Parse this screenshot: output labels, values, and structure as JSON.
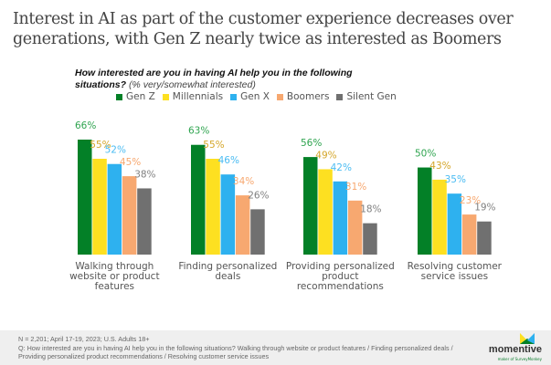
{
  "title": "Interest in AI as part of the customer experience decreases over generations, with Gen Z nearly twice as interested as Boomers",
  "subtitle": {
    "question": "How interested are you in having AI help you in the following situations?",
    "note": "(% very/somewhat interested)"
  },
  "chart_data": {
    "type": "bar",
    "categories": [
      "Walking through website or product features",
      "Finding personalized deals",
      "Providing personalized product recommendations",
      "Resolving customer service issues"
    ],
    "series": [
      {
        "name": "Gen Z",
        "color": "#038027",
        "values": [
          66,
          63,
          56,
          50
        ]
      },
      {
        "name": "Millennials",
        "color": "#fde021",
        "values": [
          55,
          55,
          49,
          43
        ]
      },
      {
        "name": "Gen X",
        "color": "#2eb1ef",
        "values": [
          52,
          46,
          42,
          35
        ]
      },
      {
        "name": "Boomers",
        "color": "#f7a870",
        "values": [
          45,
          34,
          31,
          23
        ]
      },
      {
        "name": "Silent Gen",
        "color": "#707070",
        "values": [
          38,
          26,
          18,
          19
        ]
      }
    ],
    "label_colors": [
      "#2ea44f",
      "#d4a62a",
      "#4bbcf2",
      "#f7a870",
      "#808080"
    ],
    "value_suffix": "%",
    "ylim": [
      0,
      70
    ],
    "grid": false,
    "legend": "top"
  },
  "footer": {
    "line1": "N = 2,201; April 17-19, 2023; U.S. Adults 18+",
    "line2": "Q: How interested are you in having AI help you in the following situations? Walking through website or product features / Finding personalized deals / Providing personalized product recommendations / Resolving customer service issues",
    "logo": "momentive",
    "logo_sub": "maker of SurveyMonkey"
  }
}
